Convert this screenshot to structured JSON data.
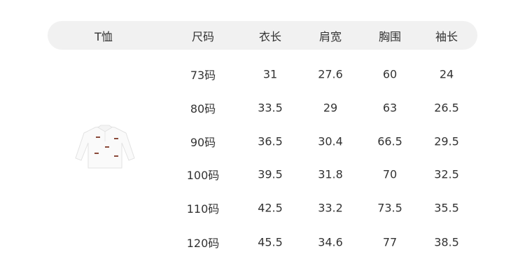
{
  "headers": [
    "T恤",
    "尺码",
    "衣长",
    "肩宽",
    "胸围",
    "袖长"
  ],
  "rows": [
    [
      "73码",
      "31",
      "27.6",
      "60",
      "24"
    ],
    [
      "80码",
      "33.5",
      "29",
      "63",
      "26.5"
    ],
    [
      "90码",
      "36.5",
      "30.4",
      "66.5",
      "29.5"
    ],
    [
      "100码",
      "39.5",
      "31.8",
      "70",
      "32.5"
    ],
    [
      "110码",
      "42.5",
      "33.2",
      "73.5",
      "35.5"
    ],
    [
      "120码",
      "45.5",
      "34.6",
      "77",
      "38.5"
    ]
  ],
  "colors": {
    "header_bg": "#f1f1f1",
    "text": "#333333"
  },
  "image": "white-long-sleeve-polo-shirt-with-dog-embroidery"
}
